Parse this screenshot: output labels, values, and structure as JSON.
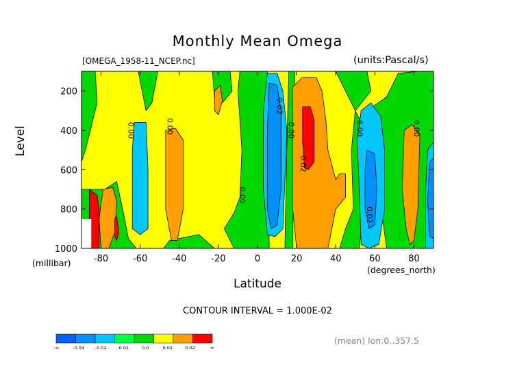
{
  "chart_data": {
    "type": "heatmap",
    "title": "Monthly Mean Omega",
    "file_label": "[OMEGA_1958-11_NCEP.nc]",
    "units_label": "(units:Pascal/s)",
    "ylabel": "Level",
    "yunit": "(millibar)",
    "xlabel": "Latitude",
    "xunit": "(degrees_north)",
    "xlim": [
      -90,
      90
    ],
    "ylim": [
      1000,
      100
    ],
    "x_ticks": [
      -80,
      -60,
      -40,
      -20,
      0,
      20,
      40,
      60,
      80
    ],
    "x_tick_labels": [
      "-80",
      "-60",
      "-40",
      "-20",
      "0",
      "20",
      "40",
      "60",
      "80"
    ],
    "y_ticks": [
      200,
      400,
      600,
      800,
      1000
    ],
    "y_tick_labels": [
      "200",
      "400",
      "600",
      "800",
      "1000"
    ],
    "contour_interval": "CONTOUR INTERVAL = 1.000E-02",
    "mean_note": "(mean) lon:0..357.5",
    "contour_labels": [
      {
        "text": "0.00",
        "lat": -66,
        "level": 400,
        "rotate": 90
      },
      {
        "text": "0.00",
        "lat": -46,
        "level": 380,
        "rotate": 90
      },
      {
        "text": "0.00",
        "lat": -9,
        "level": 730,
        "rotate": 90
      },
      {
        "text": "-0.02",
        "lat": 10,
        "level": 270,
        "rotate": 90
      },
      {
        "text": "0.00",
        "lat": 16,
        "level": 400,
        "rotate": 90
      },
      {
        "text": "0.02",
        "lat": 22,
        "level": 570,
        "rotate": 90
      },
      {
        "text": "0.00",
        "lat": 51,
        "level": 390,
        "rotate": 90
      },
      {
        "text": "0.02",
        "lat": 56,
        "level": 830,
        "rotate": 90
      },
      {
        "text": "0.00",
        "lat": 80,
        "level": 390,
        "rotate": 90
      }
    ],
    "colorbar": {
      "colors": [
        "#0060ff",
        "#0090ff",
        "#00c8ff",
        "#00ff40",
        "#00d800",
        "#ffff00",
        "#ffa000",
        "#ff0000"
      ],
      "labels": [
        "-∞",
        "-0.04",
        "-0.02",
        "-0.01",
        "0.0",
        "0.01",
        "0.02",
        "∞"
      ]
    },
    "field_regions": [
      {
        "band": "base",
        "color": "#ffff00",
        "desc": "background band 0 to 0.01"
      },
      {
        "band": "0.0..0.01 low",
        "color": "#00d800",
        "regions": [
          "around -90..-75 near 100-300",
          "-58..-38 upper",
          "-20..-5 band",
          "-15..15 lower troposphere",
          "20..60 upper",
          "55..90 broad"
        ]
      },
      {
        "band": "-0.01..-0.02",
        "color": "#00c8ff",
        "regions": [
          "-65..-55 mid",
          "-2..14 mid",
          "55..70 mid",
          "84..90 mid"
        ]
      },
      {
        "band": "-0.02..-0.04",
        "color": "#0090ff",
        "regions": [
          "5..14 core",
          "56..62 core",
          "86..90 core"
        ]
      },
      {
        "band": "0.01..0.02",
        "color": "#ffa000",
        "regions": [
          "-47..-37 mid",
          "18..45 broad",
          "-22..-18 upper",
          "76..84 mid"
        ]
      },
      {
        "band": ">0.02",
        "color": "#ff0000",
        "regions": [
          "23..29 upper mid",
          "-86..-81 near surface"
        ]
      }
    ]
  }
}
